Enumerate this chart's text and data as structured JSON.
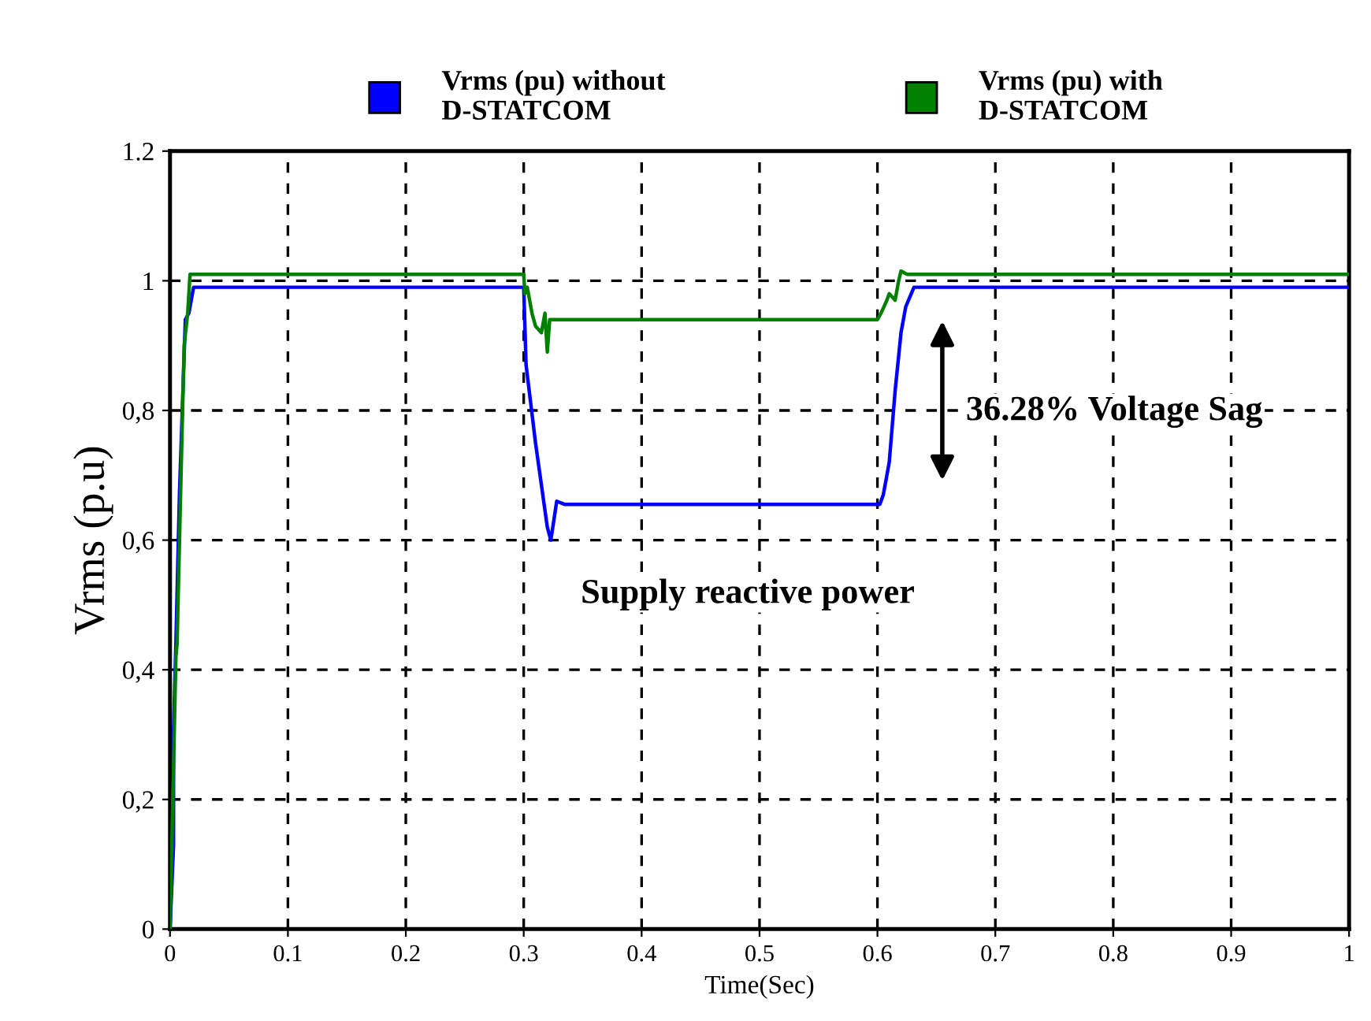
{
  "chart_data": {
    "type": "line",
    "xlabel": "Time(Sec)",
    "ylabel": "Vrms (p.u)",
    "annotations": [
      "36.28% Voltage Sag",
      "Supply reactive power"
    ],
    "xlim": [
      0,
      1
    ],
    "ylim": [
      0,
      1.2
    ],
    "xticks": [
      0,
      0.1,
      0.2,
      0.3,
      0.4,
      0.5,
      0.6,
      0.7,
      0.8,
      0.9,
      1
    ],
    "yticks": [
      0,
      {
        "value": 0.2,
        "label": "0,2"
      },
      {
        "value": 0.4,
        "label": "0,4"
      },
      {
        "value": 0.6,
        "label": "0,6"
      },
      {
        "value": 0.8,
        "label": "0,8"
      },
      1,
      1.2
    ],
    "grid": true,
    "legend": "top",
    "line_style": "solid",
    "marker": "none",
    "series": [
      {
        "name": "Vrms (pu) without\nD-STATCOM",
        "color": "#0000ff",
        "x": [
          0,
          0.003,
          0.003,
          0.005,
          0.008,
          0.013,
          0.016,
          0.02,
          0.3,
          0.302,
          0.31,
          0.32,
          0.323,
          0.328,
          0.335,
          0.602,
          0.605,
          0.61,
          0.615,
          0.62,
          0.624,
          0.631,
          1
        ],
        "values": [
          0,
          0.13,
          0.31,
          0.44,
          0.67,
          0.94,
          0.95,
          0.99,
          0.99,
          0.87,
          0.75,
          0.62,
          0.6,
          0.66,
          0.655,
          0.655,
          0.67,
          0.72,
          0.83,
          0.92,
          0.96,
          0.99,
          0.99
        ]
      },
      {
        "name": "Vrms (pu) with\nD-STATCOM",
        "color": "#008000",
        "x": [
          0,
          0.005,
          0.006,
          0.01,
          0.012,
          0.015,
          0.017,
          0.02,
          0.3,
          0.301,
          0.303,
          0.307,
          0.31,
          0.315,
          0.318,
          0.32,
          0.322,
          0.325,
          0.6,
          0.603,
          0.608,
          0.61,
          0.615,
          0.618,
          0.62,
          0.625,
          1
        ],
        "values": [
          0,
          0.42,
          0.44,
          0.75,
          0.9,
          0.95,
          1.01,
          1.01,
          1.01,
          0.98,
          0.99,
          0.95,
          0.93,
          0.92,
          0.95,
          0.89,
          0.94,
          0.94,
          0.94,
          0.95,
          0.97,
          0.98,
          0.97,
          1.0,
          1.015,
          1.01,
          1.01
        ]
      }
    ]
  }
}
